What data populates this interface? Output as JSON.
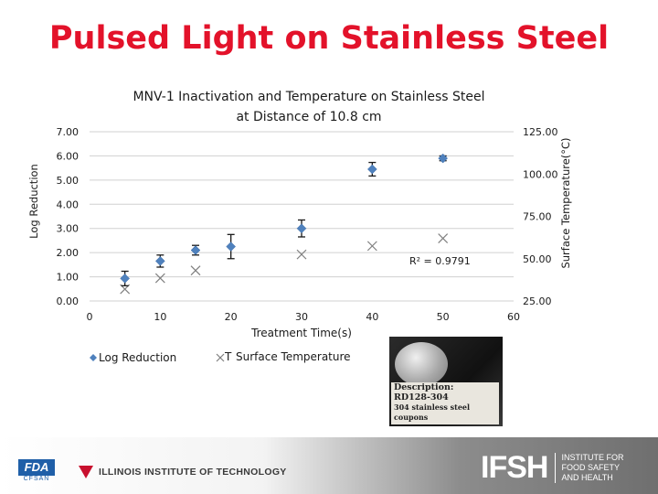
{
  "slide_title": "Pulsed Light on Stainless Steel",
  "chart_data": {
    "type": "scatter",
    "title": "MNV-1 Inactivation and Temperature on Stainless Steel",
    "subtitle": "at Distance of 10.8 cm",
    "xlabel": "Treatment Time(s)",
    "ylabel_left": "Log Reduction",
    "ylabel_right": "Surface Temperature(°C)",
    "xlim": [
      0,
      60
    ],
    "ylim_left": [
      0,
      7
    ],
    "ylim_right": [
      25,
      125
    ],
    "x_ticks": [
      "0",
      "10",
      "20",
      "30",
      "40",
      "50",
      "60"
    ],
    "y_left_ticks": [
      "0.00",
      "1.00",
      "2.00",
      "3.00",
      "4.00",
      "5.00",
      "6.00",
      "7.00"
    ],
    "y_right_ticks": [
      "25.00",
      "50.00",
      "75.00",
      "100.00",
      "125.00"
    ],
    "grid": "horizontal",
    "annotation": "R² = 0.9791",
    "series": [
      {
        "name": "Log Reduction",
        "marker": "diamond",
        "color": "#4f81bd",
        "x": [
          5,
          10,
          15,
          20,
          30,
          40,
          50
        ],
        "y": [
          0.93,
          1.65,
          2.1,
          2.25,
          3.0,
          5.45,
          5.9
        ],
        "error": [
          0.3,
          0.25,
          0.2,
          0.5,
          0.35,
          0.28,
          0.1
        ]
      },
      {
        "name": "Surface Temperature",
        "marker": "x",
        "color": "#7f7f7f",
        "x": [
          5,
          10,
          15,
          30,
          40,
          50
        ],
        "y": [
          32.0,
          38.5,
          43.0,
          52.5,
          57.5,
          62.0
        ]
      }
    ]
  },
  "legend": {
    "log_label": "Log Reduction",
    "temp_label": "Surface Temperature",
    "temp_marker_text": "T"
  },
  "photo": {
    "desc_line1": "Description:",
    "desc_line2": "RD128-304",
    "desc_line3": "304 stainless steel coupons"
  },
  "footer": {
    "fda_text": "FDA",
    "fda_sub": "CFSAN",
    "iit_text": "ILLINOIS INSTITUTE OF TECHNOLOGY",
    "ifsh_text": "IFSH",
    "ifsh_sub1": "INSTITUTE FOR",
    "ifsh_sub2": "FOOD SAFETY",
    "ifsh_sub3": "AND HEALTH"
  }
}
